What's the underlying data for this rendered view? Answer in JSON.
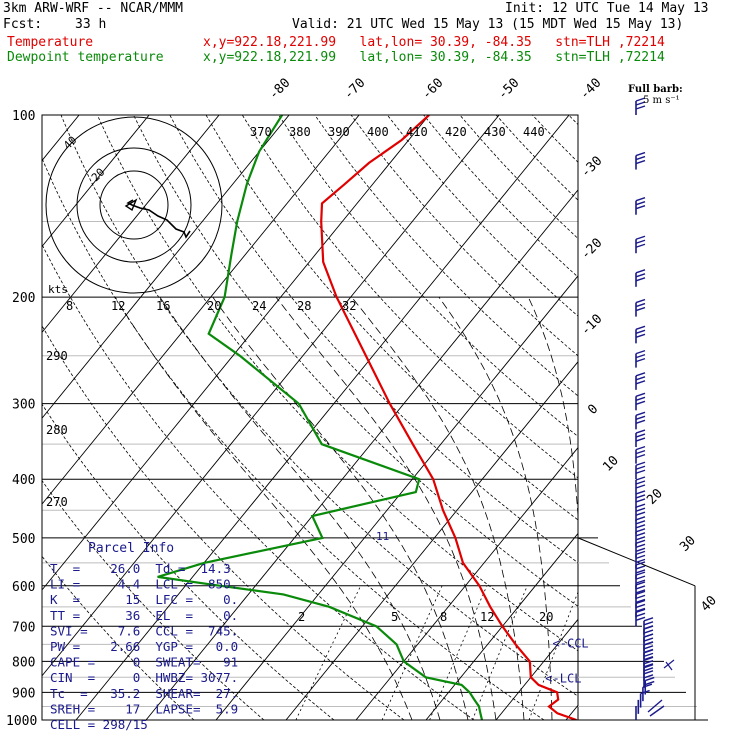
{
  "header": {
    "model": "3km ARW-WRF -- NCAR/MMM",
    "init": "Init: 12 UTC Tue 14 May 13",
    "fcst_label": "Fcst:",
    "fcst_value": "33 h",
    "valid": "Valid: 21 UTC Wed 15 May 13 (15 MDT Wed 15 May 13)",
    "temp_label": "Temperature",
    "dew_label": "Dewpoint temperature",
    "location": "x,y=922.18,221.99   lat,lon= 30.39, -84.35   stn=TLH ,72214"
  },
  "colors": {
    "temperature": "#e00000",
    "dewpoint": "#0a8a0a",
    "text_blue": "#1a1a8c",
    "hodo": "#000000"
  },
  "wind_legend": {
    "title": "Full barb:",
    "value": "5 m s⁻¹"
  },
  "chart_data": {
    "type": "line",
    "title": "",
    "x_scale": "skew-T temperature (°C)",
    "y_scale": "log pressure (hPa)",
    "ylim": [
      1000,
      100
    ],
    "pressure_ticks": [
      "100",
      "200",
      "300",
      "400",
      "500",
      "600",
      "700",
      "800",
      "900",
      "1000"
    ],
    "isotherm_labels": [
      "-80",
      "-70",
      "-60",
      "-50",
      "-40",
      "-30",
      "-20",
      "-10",
      "0",
      "10",
      "20",
      "30",
      "40"
    ],
    "theta_labels_top": [
      "370",
      "380",
      "390",
      "400",
      "410",
      "420",
      "430",
      "440"
    ],
    "theta_labels_left": [
      "290",
      "280",
      "270"
    ],
    "mixing_ratio_labels": [
      "2",
      "5",
      "8",
      "12",
      "20"
    ],
    "hodo_speed_labels": [
      "8",
      "12",
      "16",
      "20",
      "24",
      "28",
      "32"
    ],
    "hodo_kts_label": "kts",
    "hodo_ring_labels": [
      "20",
      "40"
    ],
    "series": [
      {
        "name": "Temperature",
        "points": [
          [
            1000,
            31.5
          ],
          [
            975,
            28
          ],
          [
            950,
            26
          ],
          [
            925,
            26.5
          ],
          [
            900,
            25.5
          ],
          [
            875,
            22
          ],
          [
            850,
            20
          ],
          [
            800,
            18
          ],
          [
            750,
            14
          ],
          [
            700,
            10
          ],
          [
            650,
            6
          ],
          [
            600,
            2
          ],
          [
            550,
            -3
          ],
          [
            500,
            -7
          ],
          [
            450,
            -12
          ],
          [
            400,
            -17
          ],
          [
            350,
            -24
          ],
          [
            300,
            -32
          ],
          [
            250,
            -41
          ],
          [
            200,
            -52
          ],
          [
            175,
            -58
          ],
          [
            150,
            -63
          ],
          [
            140,
            -65
          ],
          [
            130,
            -64
          ],
          [
            120,
            -63
          ],
          [
            110,
            -61
          ],
          [
            100,
            -60
          ]
        ]
      },
      {
        "name": "Dewpoint temperature",
        "points": [
          [
            1000,
            18
          ],
          [
            975,
            17
          ],
          [
            950,
            16
          ],
          [
            925,
            14.5
          ],
          [
            900,
            13
          ],
          [
            875,
            11
          ],
          [
            850,
            5
          ],
          [
            800,
            0
          ],
          [
            750,
            -3
          ],
          [
            700,
            -8
          ],
          [
            650,
            -17
          ],
          [
            620,
            -25
          ],
          [
            600,
            -35
          ],
          [
            580,
            -45
          ],
          [
            550,
            -40
          ],
          [
            500,
            -26
          ],
          [
            460,
            -30
          ],
          [
            420,
            -18
          ],
          [
            400,
            -19
          ],
          [
            350,
            -37
          ],
          [
            300,
            -45
          ],
          [
            250,
            -59
          ],
          [
            230,
            -66
          ],
          [
            200,
            -68
          ],
          [
            170,
            -72
          ],
          [
            150,
            -75
          ],
          [
            130,
            -78
          ],
          [
            115,
            -80
          ],
          [
            100,
            -81
          ]
        ]
      }
    ],
    "annotations": [
      {
        "text": "<-CCL",
        "pressure": 745
      },
      {
        "text": "<-LCL",
        "pressure": 850
      }
    ],
    "wind_barb_speeds_ms": [
      2,
      4,
      6,
      8,
      10,
      12,
      14,
      16,
      18,
      20,
      22,
      24,
      26,
      28,
      30,
      32,
      34,
      35,
      36,
      37,
      38,
      39,
      40,
      41,
      42,
      43,
      44,
      45,
      46,
      47,
      48,
      49,
      50,
      51,
      52,
      53,
      54,
      55,
      56,
      57
    ]
  },
  "parcel_info": {
    "title": "Parcel Info",
    "rows": [
      "T  =    26.0  Td =  14.3",
      "LI =     4.4  LCL =  850.",
      "K  =      15  LFC =    0.",
      "TT =      36  EL  =    0.",
      "SVI =    7.6  CCL =  745.",
      "PW =    2.66  YGP =   0.0",
      "CAPE =     0  SWEAT=   91",
      "CIN  =     0  HWBZ= 3077.",
      "Tc  =   35.2  SHEAR=  27.",
      "SREH =    17  LAPSE=  5.9",
      "CELL = 298/15"
    ]
  }
}
